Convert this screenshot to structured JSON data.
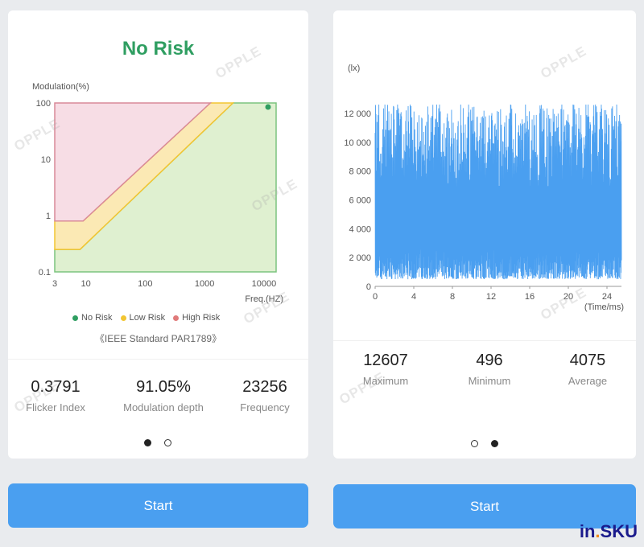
{
  "left": {
    "risk_title": "No Risk",
    "stats": [
      {
        "value": "0.3791",
        "label": "Flicker Index"
      },
      {
        "value": "91.05%",
        "label": "Modulation depth"
      },
      {
        "value": "23256",
        "label": "Frequency"
      }
    ],
    "legend": [
      {
        "label": "No Risk",
        "color": "#2f9e61"
      },
      {
        "label": "Low Risk",
        "color": "#f2c531"
      },
      {
        "label": "High Risk",
        "color": "#e07a7a"
      }
    ],
    "standard_text": "《IEEE Standard PAR1789》",
    "active_page": 0,
    "start_label": "Start"
  },
  "right": {
    "stats": [
      {
        "value": "12607",
        "label": "Maximum"
      },
      {
        "value": "496",
        "label": "Minimum"
      },
      {
        "value": "4075",
        "label": "Average"
      }
    ],
    "active_page": 1,
    "start_label": "Start"
  },
  "watermark_text": "OPPLE",
  "brand": {
    "prefix": "in",
    "suffix": "SKU",
    "dot": "."
  },
  "chart_data": [
    {
      "type": "area",
      "ylabel": "Modulation(%)",
      "xlabel": "Freq.(HZ)",
      "x_scale": "log",
      "y_scale": "log",
      "xlim": [
        3,
        16000
      ],
      "ylim": [
        0.1,
        100
      ],
      "x_ticks": [
        "3",
        "10",
        "100",
        "1000",
        "10000"
      ],
      "y_ticks": [
        "100",
        "10",
        "1",
        "0.1"
      ],
      "regions": [
        {
          "name": "High Risk",
          "color": "#f7dde5",
          "edge": "#d98a98",
          "points": [
            [
              3,
              0.8
            ],
            [
              9,
              0.8
            ],
            [
              1250,
              100
            ],
            [
              3,
              100
            ]
          ]
        },
        {
          "name": "Low Risk",
          "color": "#fbe9b4",
          "edge": "#f2c531",
          "points": [
            [
              3,
              0.8
            ],
            [
              9,
              0.8
            ],
            [
              1250,
              100
            ],
            [
              3000,
              100
            ],
            [
              8,
              0.25
            ],
            [
              3,
              0.25
            ]
          ]
        },
        {
          "name": "No Risk",
          "color": "#dff0d0",
          "edge": "#7cc47f",
          "points": [
            [
              3,
              0.1
            ],
            [
              3,
              0.25
            ],
            [
              8,
              0.25
            ],
            [
              3000,
              100
            ],
            [
              16000,
              100
            ],
            [
              16000,
              0.1
            ]
          ]
        }
      ],
      "measurement": {
        "x": 23256,
        "y": 91.05,
        "color": "#2f9e61"
      }
    },
    {
      "type": "line",
      "ylabel": "(lx)",
      "xlabel": "(Time/ms)",
      "xlim": [
        0,
        25.5
      ],
      "ylim": [
        0,
        13000
      ],
      "x_ticks": [
        "0",
        "4",
        "8",
        "12",
        "16",
        "20",
        "24"
      ],
      "y_ticks": [
        "12 000",
        "10 000",
        "8 000",
        "6 000",
        "4 000",
        "2 000",
        "0"
      ],
      "series": [
        {
          "color": "#4a9ff0",
          "max": 12607,
          "min": 496,
          "average": 4075,
          "frequency_hz": 23256
        }
      ]
    }
  ]
}
